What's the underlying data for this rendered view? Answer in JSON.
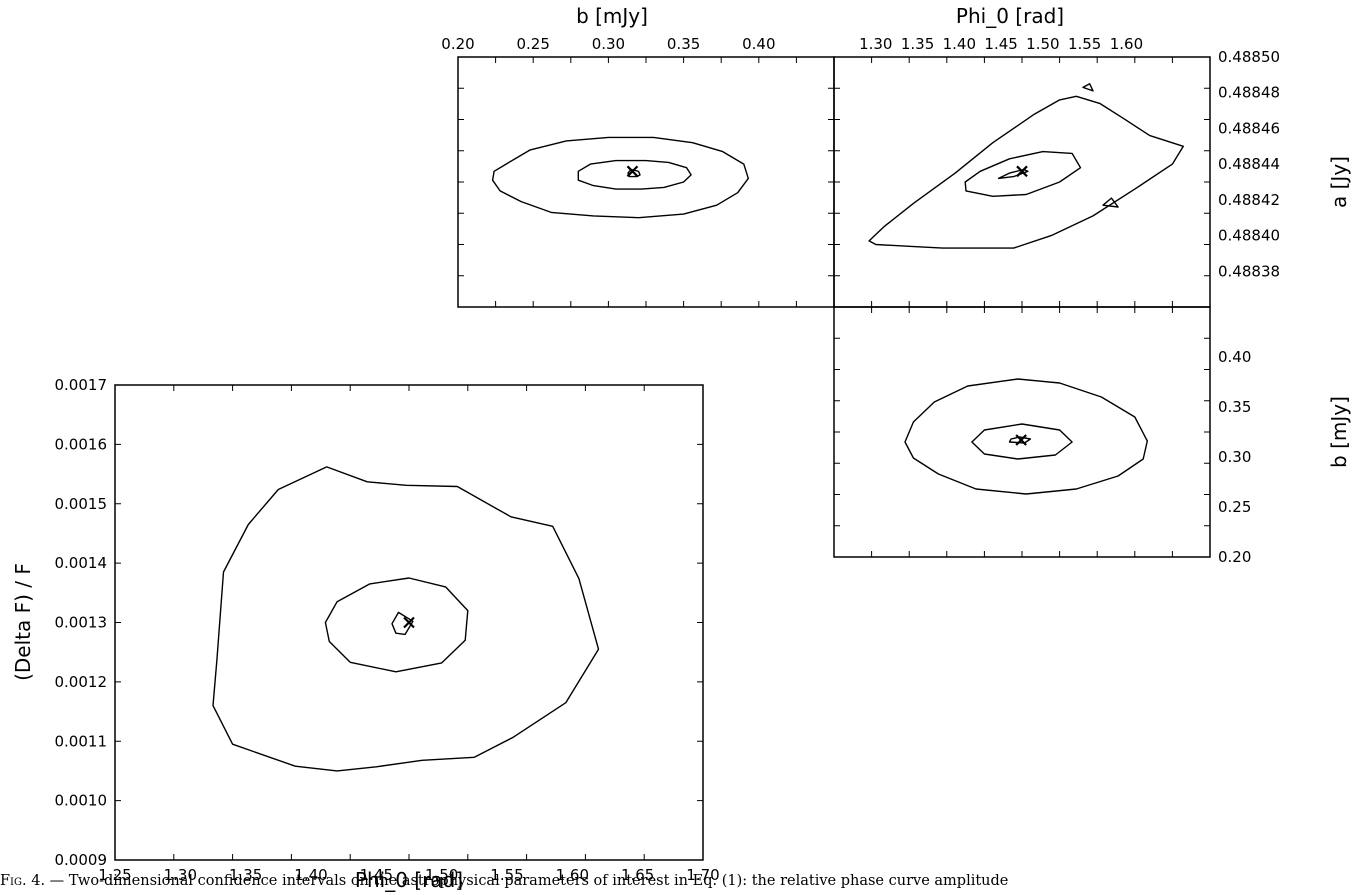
{
  "chart_data": [
    {
      "type": "contour",
      "id": "a-vs-b",
      "xlabel": "b [mJy]",
      "ylabel": "",
      "xlim": [
        0.2,
        0.45
      ],
      "ylim": [
        0.48836,
        0.4885
      ],
      "xticks": [
        "0.20",
        "0.25",
        "0.30",
        "0.35",
        "0.40"
      ],
      "yticks": [],
      "best_fit": {
        "x": 0.316,
        "y": 0.488436
      },
      "contours": [
        {
          "level": "inner",
          "points": [
            [
              0.314,
              0.488433
            ],
            [
              0.319,
              0.488433
            ],
            [
              0.321,
              0.488434
            ],
            [
              0.32,
              0.488436
            ],
            [
              0.315,
              0.488437
            ],
            [
              0.313,
              0.488435
            ]
          ]
        },
        {
          "level": "middle",
          "points": [
            [
              0.28,
              0.488431
            ],
            [
              0.29,
              0.488428
            ],
            [
              0.305,
              0.488426
            ],
            [
              0.322,
              0.488426
            ],
            [
              0.337,
              0.488427
            ],
            [
              0.35,
              0.48843
            ],
            [
              0.355,
              0.488434
            ],
            [
              0.352,
              0.488438
            ],
            [
              0.34,
              0.488441
            ],
            [
              0.325,
              0.488442
            ],
            [
              0.305,
              0.488442
            ],
            [
              0.288,
              0.48844
            ],
            [
              0.28,
              0.488436
            ]
          ]
        },
        {
          "level": "outer",
          "points": [
            [
              0.223,
              0.488431
            ],
            [
              0.228,
              0.488425
            ],
            [
              0.242,
              0.488419
            ],
            [
              0.262,
              0.488413
            ],
            [
              0.29,
              0.488411
            ],
            [
              0.32,
              0.48841
            ],
            [
              0.35,
              0.488412
            ],
            [
              0.372,
              0.488417
            ],
            [
              0.386,
              0.488424
            ],
            [
              0.393,
              0.488432
            ],
            [
              0.39,
              0.48844
            ],
            [
              0.376,
              0.488447
            ],
            [
              0.356,
              0.488452
            ],
            [
              0.33,
              0.488455
            ],
            [
              0.3,
              0.488455
            ],
            [
              0.272,
              0.488453
            ],
            [
              0.248,
              0.488448
            ],
            [
              0.232,
              0.48844
            ],
            [
              0.224,
              0.488436
            ]
          ]
        }
      ]
    },
    {
      "type": "contour",
      "id": "a-vs-phi",
      "xlabel": "Phi_0 [rad]",
      "ylabel": "a [Jy]",
      "xlim": [
        1.25,
        1.7
      ],
      "ylim": [
        0.48836,
        0.4885
      ],
      "xticks": [
        "1.30",
        "1.35",
        "1.40",
        "1.45",
        "1.50",
        "1.55",
        "1.60"
      ],
      "yticks": [
        "0.48838",
        "0.48840",
        "0.48842",
        "0.48844",
        "0.48846",
        "0.48848",
        "0.48850"
      ],
      "best_fit": {
        "x": 1.475,
        "y": 0.488436
      },
      "contours": [
        {
          "level": "inner",
          "points": [
            [
              1.447,
              0.488432
            ],
            [
              1.465,
              0.488433
            ],
            [
              1.482,
              0.488436
            ],
            [
              1.477,
              0.488437
            ],
            [
              1.46,
              0.488435
            ]
          ]
        },
        {
          "level": "middle",
          "points": [
            [
              1.408,
              0.488425
            ],
            [
              1.44,
              0.488422
            ],
            [
              1.48,
              0.488423
            ],
            [
              1.52,
              0.48843
            ],
            [
              1.545,
              0.488438
            ],
            [
              1.535,
              0.488446
            ],
            [
              1.5,
              0.488447
            ],
            [
              1.46,
              0.488443
            ],
            [
              1.425,
              0.488436
            ],
            [
              1.407,
              0.48843
            ]
          ]
        },
        {
          "level": "outer",
          "points": [
            [
              1.292,
              0.488397
            ],
            [
              1.31,
              0.488405
            ],
            [
              1.345,
              0.488418
            ],
            [
              1.395,
              0.488435
            ],
            [
              1.44,
              0.488452
            ],
            [
              1.49,
              0.488468
            ],
            [
              1.52,
              0.488476
            ],
            [
              1.54,
              0.488478
            ],
            [
              1.568,
              0.488474
            ],
            [
              1.595,
              0.488466
            ],
            [
              1.628,
              0.488456
            ],
            [
              1.668,
              0.48845
            ],
            [
              1.655,
              0.48844
            ],
            [
              1.61,
              0.488426
            ],
            [
              1.56,
              0.488411
            ],
            [
              1.51,
              0.4884
            ],
            [
              1.465,
              0.488393
            ],
            [
              1.42,
              0.488393
            ],
            [
              1.38,
              0.488393
            ],
            [
              1.34,
              0.488394
            ],
            [
              1.3,
              0.488395
            ]
          ]
        },
        {
          "level": "island",
          "points": [
            [
              1.548,
              0.488483
            ],
            [
              1.56,
              0.488481
            ],
            [
              1.556,
              0.488485
            ]
          ]
        },
        {
          "level": "island",
          "points": [
            [
              1.572,
              0.488417
            ],
            [
              1.59,
              0.488416
            ],
            [
              1.582,
              0.488421
            ]
          ]
        }
      ]
    },
    {
      "type": "contour",
      "id": "b-vs-phi",
      "xlabel": "",
      "ylabel": "b [mJy]",
      "xlim": [
        1.25,
        1.7
      ],
      "ylim": [
        0.2,
        0.45
      ],
      "xticks": [],
      "yticks": [
        "0.20",
        "0.25",
        "0.30",
        "0.35",
        "0.40"
      ],
      "best_fit": {
        "x": 1.474,
        "y": 0.317
      },
      "contours": [
        {
          "level": "inner",
          "points": [
            [
              1.46,
              0.315
            ],
            [
              1.478,
              0.314
            ],
            [
              1.485,
              0.318
            ],
            [
              1.472,
              0.32
            ],
            [
              1.462,
              0.318
            ]
          ]
        },
        {
          "level": "middle",
          "points": [
            [
              1.415,
              0.315
            ],
            [
              1.43,
              0.303
            ],
            [
              1.47,
              0.298
            ],
            [
              1.515,
              0.302
            ],
            [
              1.535,
              0.315
            ],
            [
              1.52,
              0.327
            ],
            [
              1.475,
              0.333
            ],
            [
              1.43,
              0.327
            ]
          ]
        },
        {
          "level": "outer",
          "points": [
            [
              1.335,
              0.315
            ],
            [
              1.345,
              0.299
            ],
            [
              1.375,
              0.283
            ],
            [
              1.42,
              0.268
            ],
            [
              1.48,
              0.263
            ],
            [
              1.54,
              0.268
            ],
            [
              1.59,
              0.281
            ],
            [
              1.62,
              0.298
            ],
            [
              1.625,
              0.316
            ],
            [
              1.61,
              0.34
            ],
            [
              1.57,
              0.36
            ],
            [
              1.52,
              0.374
            ],
            [
              1.47,
              0.378
            ],
            [
              1.41,
              0.371
            ],
            [
              1.37,
              0.355
            ],
            [
              1.345,
              0.335
            ]
          ]
        }
      ]
    },
    {
      "type": "contour",
      "id": "df-vs-phi",
      "xlabel": "Phi_0 [rad]",
      "ylabel": "(Delta F) / F",
      "xlim": [
        1.25,
        1.7
      ],
      "ylim": [
        0.0009,
        0.0017
      ],
      "xticks": [
        "1.25",
        "1.30",
        "1.35",
        "1.40",
        "1.45",
        "1.50",
        "1.55",
        "1.60",
        "1.65",
        "1.70"
      ],
      "yticks": [
        "0.0009",
        "0.0010",
        "0.0011",
        "0.0012",
        "0.0013",
        "0.0014",
        "0.0015",
        "0.0016",
        "0.0017"
      ],
      "best_fit": {
        "x": 1.475,
        "y": 0.0013
      },
      "contours": [
        {
          "level": "inner",
          "points": [
            [
              1.462,
              0.001298
            ],
            [
              1.467,
              0.001317
            ],
            [
              1.478,
              0.001302
            ],
            [
              1.472,
              0.00128
            ],
            [
              1.465,
              0.001282
            ]
          ]
        },
        {
          "level": "middle",
          "points": [
            [
              1.411,
              0.0013
            ],
            [
              1.42,
              0.001335
            ],
            [
              1.445,
              0.001365
            ],
            [
              1.475,
              0.001375
            ],
            [
              1.503,
              0.00136
            ],
            [
              1.52,
              0.00132
            ],
            [
              1.518,
              0.00127
            ],
            [
              1.5,
              0.001232
            ],
            [
              1.465,
              0.001217
            ],
            [
              1.43,
              0.001233
            ],
            [
              1.414,
              0.001268
            ]
          ]
        },
        {
          "level": "outer",
          "points": [
            [
              1.328,
              0.001237
            ],
            [
              1.333,
              0.001385
            ],
            [
              1.352,
              0.001465
            ],
            [
              1.375,
              0.001524
            ],
            [
              1.412,
              0.001562
            ],
            [
              1.443,
              0.001537
            ],
            [
              1.473,
              0.001531
            ],
            [
              1.512,
              0.001529
            ],
            [
              1.553,
              0.001478
            ],
            [
              1.585,
              0.001462
            ],
            [
              1.605,
              0.001374
            ],
            [
              1.62,
              0.001255
            ],
            [
              1.595,
              0.001165
            ],
            [
              1.555,
              0.001107
            ],
            [
              1.525,
              0.001073
            ],
            [
              1.485,
              0.001068
            ],
            [
              1.45,
              0.001057
            ],
            [
              1.42,
              0.00105
            ],
            [
              1.388,
              0.001058
            ],
            [
              1.34,
              0.001095
            ],
            [
              1.325,
              0.00116
            ]
          ]
        }
      ]
    }
  ],
  "caption": {
    "label": "Fig. 4.",
    "text": "— Two-dimensional confidence intervals on the astrophysical parameters of interest in Eq. (1): the relative phase curve amplitude"
  }
}
